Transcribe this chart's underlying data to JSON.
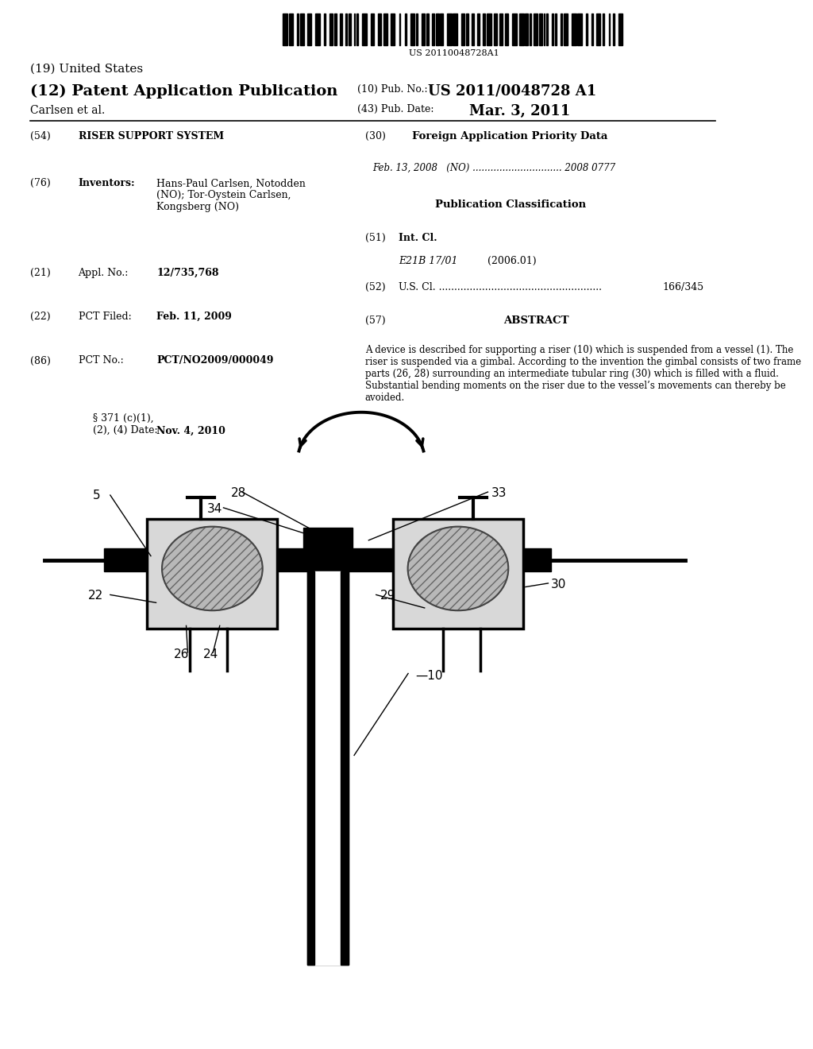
{
  "bg_color": "#ffffff",
  "barcode_text": "US 20110048728A1",
  "title_19": "(19) United States",
  "title_12": "(12) Patent Application Publication",
  "pub_no_label": "(10) Pub. No.:",
  "pub_no_value": "US 2011/0048728 A1",
  "pub_date_label": "(43) Pub. Date:",
  "pub_date_value": "Mar. 3, 2011",
  "author": "Carlsen et al.",
  "field54_label": "(54)",
  "field54_value": "RISER SUPPORT SYSTEM",
  "field76_label": "(76)",
  "field76_key": "Inventors:",
  "field76_value": "Hans-Paul Carlsen, Notodden\n(NO); Tor-Oystein Carlsen,\nKongsberg (NO)",
  "field21_label": "(21)",
  "field21_key": "Appl. No.:",
  "field21_value": "12/735,768",
  "field22_label": "(22)",
  "field22_key": "PCT Filed:",
  "field22_value": "Feb. 11, 2009",
  "field86_label": "(86)",
  "field86_key": "PCT No.:",
  "field86_value": "PCT/NO2009/000049",
  "field86b_value": "§ 371 (c)(1),\n(2), (4) Date:",
  "field86b_date": "Nov. 4, 2010",
  "field30_label": "(30)",
  "field30_title": "Foreign Application Priority Data",
  "field30_value": "Feb. 13, 2008   (NO) .............................. 2008 0777",
  "pub_class_title": "Publication Classification",
  "field51_label": "(51)",
  "field51_key": "Int. Cl.",
  "field51_value": "E21B 17/01",
  "field51_year": "(2006.01)",
  "field52_label": "(52)",
  "field52_key": "U.S. Cl. .....................................................",
  "field52_value": "166/345",
  "field57_label": "(57)",
  "field57_title": "ABSTRACT",
  "abstract_text": "A device is described for supporting a riser (10) which is suspended from a vessel (1). The riser is suspended via a gimbal. According to the invention the gimbal consists of two frame parts (26, 28) surrounding an intermediate tubular ring (30) which is filled with a fluid. Substantial bending moments on the riser due to the vessel’s movements can thereby be avoided."
}
